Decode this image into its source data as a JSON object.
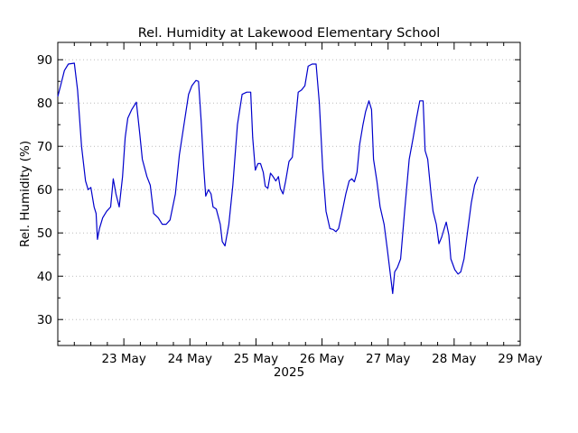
{
  "chart_data": {
    "type": "line",
    "title": "Rel. Humidity at Lakewood Elementary School",
    "ylabel": "Rel. Humidity (%)",
    "xlabel": "2025",
    "xlim": [
      22.0,
      29.0
    ],
    "ylim": [
      24,
      94
    ],
    "x_ticks": [
      {
        "value": 23,
        "label": "23 May"
      },
      {
        "value": 24,
        "label": "24 May"
      },
      {
        "value": 25,
        "label": "25 May"
      },
      {
        "value": 26,
        "label": "26 May"
      },
      {
        "value": 27,
        "label": "27 May"
      },
      {
        "value": 28,
        "label": "28 May"
      },
      {
        "value": 29,
        "label": "29 May"
      }
    ],
    "y_ticks": [
      30,
      40,
      50,
      60,
      70,
      80,
      90
    ],
    "grid": "horizontal dotted",
    "series_color": "#0000cc",
    "series": [
      {
        "points": [
          [
            22.0,
            81.5
          ],
          [
            22.05,
            84.5
          ],
          [
            22.1,
            87.5
          ],
          [
            22.16,
            89.0
          ],
          [
            22.25,
            89.2
          ],
          [
            22.3,
            83.0
          ],
          [
            22.36,
            70.0
          ],
          [
            22.42,
            62.0
          ],
          [
            22.46,
            60.0
          ],
          [
            22.5,
            60.5
          ],
          [
            22.55,
            56.0
          ],
          [
            22.58,
            54.5
          ],
          [
            22.6,
            48.5
          ],
          [
            22.63,
            51.0
          ],
          [
            22.68,
            53.5
          ],
          [
            22.74,
            55.0
          ],
          [
            22.8,
            56.0
          ],
          [
            22.84,
            62.5
          ],
          [
            22.88,
            59.0
          ],
          [
            22.93,
            56.0
          ],
          [
            22.98,
            63.0
          ],
          [
            23.02,
            72.0
          ],
          [
            23.06,
            76.5
          ],
          [
            23.12,
            78.5
          ],
          [
            23.19,
            80.2
          ],
          [
            23.24,
            73.0
          ],
          [
            23.28,
            67.0
          ],
          [
            23.35,
            63.0
          ],
          [
            23.4,
            61.0
          ],
          [
            23.45,
            54.5
          ],
          [
            23.52,
            53.5
          ],
          [
            23.58,
            52.0
          ],
          [
            23.64,
            52.0
          ],
          [
            23.7,
            53.0
          ],
          [
            23.78,
            59.0
          ],
          [
            23.84,
            68.0
          ],
          [
            23.91,
            75.0
          ],
          [
            23.98,
            82.0
          ],
          [
            24.03,
            84.0
          ],
          [
            24.09,
            85.2
          ],
          [
            24.13,
            85.0
          ],
          [
            24.17,
            76.0
          ],
          [
            24.21,
            65.0
          ],
          [
            24.24,
            58.5
          ],
          [
            24.28,
            60.0
          ],
          [
            24.32,
            59.0
          ],
          [
            24.35,
            56.0
          ],
          [
            24.4,
            55.5
          ],
          [
            24.46,
            52.0
          ],
          [
            24.49,
            48.0
          ],
          [
            24.53,
            47.0
          ],
          [
            24.59,
            52.0
          ],
          [
            24.65,
            61.0
          ],
          [
            24.72,
            75.0
          ],
          [
            24.79,
            82.0
          ],
          [
            24.86,
            82.5
          ],
          [
            24.92,
            82.5
          ],
          [
            24.95,
            72.0
          ],
          [
            24.99,
            64.5
          ],
          [
            25.03,
            66.0
          ],
          [
            25.07,
            66.0
          ],
          [
            25.11,
            64.0
          ],
          [
            25.14,
            60.8
          ],
          [
            25.18,
            60.3
          ],
          [
            25.22,
            63.8
          ],
          [
            25.26,
            63.0
          ],
          [
            25.3,
            62.0
          ],
          [
            25.34,
            63.0
          ],
          [
            25.37,
            60.2
          ],
          [
            25.41,
            59.0
          ],
          [
            25.45,
            62.0
          ],
          [
            25.5,
            66.5
          ],
          [
            25.55,
            67.5
          ],
          [
            25.6,
            76.0
          ],
          [
            25.64,
            82.5
          ],
          [
            25.69,
            83.0
          ],
          [
            25.74,
            84.0
          ],
          [
            25.79,
            88.5
          ],
          [
            25.85,
            89.0
          ],
          [
            25.91,
            89.0
          ],
          [
            25.96,
            80.0
          ],
          [
            26.01,
            65.0
          ],
          [
            26.06,
            55.0
          ],
          [
            26.12,
            51.0
          ],
          [
            26.17,
            50.8
          ],
          [
            26.21,
            50.3
          ],
          [
            26.25,
            51.0
          ],
          [
            26.3,
            54.5
          ],
          [
            26.36,
            59.0
          ],
          [
            26.41,
            62.0
          ],
          [
            26.45,
            62.5
          ],
          [
            26.49,
            61.8
          ],
          [
            26.53,
            64.0
          ],
          [
            26.57,
            70.5
          ],
          [
            26.62,
            75.0
          ],
          [
            26.66,
            78.0
          ],
          [
            26.71,
            80.5
          ],
          [
            26.75,
            78.5
          ],
          [
            26.78,
            67.0
          ],
          [
            26.83,
            62.0
          ],
          [
            26.88,
            56.0
          ],
          [
            26.94,
            52.0
          ],
          [
            26.99,
            46.0
          ],
          [
            27.03,
            41.0
          ],
          [
            27.07,
            36.0
          ],
          [
            27.1,
            41.0
          ],
          [
            27.14,
            42.0
          ],
          [
            27.19,
            44.0
          ],
          [
            27.25,
            55.0
          ],
          [
            27.32,
            67.0
          ],
          [
            27.38,
            72.0
          ],
          [
            27.43,
            76.5
          ],
          [
            27.48,
            80.5
          ],
          [
            27.53,
            80.5
          ],
          [
            27.56,
            69.0
          ],
          [
            27.6,
            67.0
          ],
          [
            27.65,
            59.0
          ],
          [
            27.68,
            55.0
          ],
          [
            27.73,
            52.0
          ],
          [
            27.77,
            47.5
          ],
          [
            27.81,
            49.0
          ],
          [
            27.85,
            51.0
          ],
          [
            27.88,
            52.5
          ],
          [
            27.92,
            49.5
          ],
          [
            27.95,
            44.0
          ],
          [
            28.01,
            41.5
          ],
          [
            28.06,
            40.5
          ],
          [
            28.1,
            41.0
          ],
          [
            28.15,
            44.0
          ],
          [
            28.2,
            50.0
          ],
          [
            28.26,
            57.0
          ],
          [
            28.31,
            61.0
          ],
          [
            28.36,
            63.0
          ]
        ]
      }
    ]
  }
}
